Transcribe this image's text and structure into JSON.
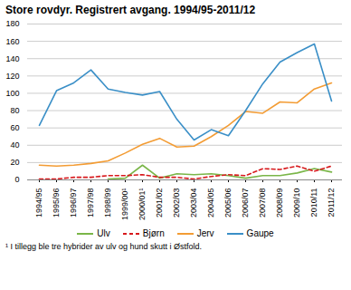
{
  "chart_data": {
    "type": "line",
    "title": "Store rovdyr. Registrert avgang. 1994/95-2011/12",
    "categories": [
      "1994/95",
      "1995/96",
      "1996/97",
      "1997/98",
      "1998/99",
      "1999/00¹",
      "2000/01¹",
      "2001/02",
      "2002/03",
      "2003/04",
      "2004/05",
      "2005/06",
      "2006/07",
      "2007/08",
      "2008/09",
      "2009/10",
      "2010/11",
      "2011/12"
    ],
    "series": [
      {
        "name": "Ulv",
        "color": "#7ab648",
        "line_style": "solid",
        "values": [
          null,
          null,
          null,
          null,
          1,
          2,
          17,
          2,
          7,
          6,
          7,
          5,
          2,
          5,
          5,
          8,
          13,
          9
        ]
      },
      {
        "name": "Bjørn",
        "color": "#d7191c",
        "line_style": "dashed",
        "values": [
          1,
          1,
          3,
          3,
          5,
          5,
          6,
          3,
          3,
          1,
          4,
          6,
          5,
          13,
          12,
          16,
          10,
          16
        ]
      },
      {
        "name": "Jerv",
        "color": "#f39c34",
        "line_style": "solid",
        "values": [
          17,
          16,
          17,
          19,
          22,
          31,
          41,
          48,
          38,
          39,
          50,
          63,
          79,
          77,
          90,
          89,
          105,
          112
        ]
      },
      {
        "name": "Gaupe",
        "color": "#3a8fc7",
        "line_style": "solid",
        "values": [
          63,
          103,
          112,
          127,
          105,
          101,
          98,
          102,
          70,
          46,
          58,
          51,
          80,
          111,
          136,
          147,
          157,
          91
        ]
      }
    ],
    "ylim": [
      0,
      180
    ],
    "yticks": [
      0,
      20,
      40,
      60,
      80,
      100,
      120,
      140,
      160,
      180
    ],
    "grid": true,
    "legend": "bottom",
    "annotations": [
      "¹ I tillegg ble tre hybrider av ulv og hund skutt i Østfold."
    ]
  }
}
